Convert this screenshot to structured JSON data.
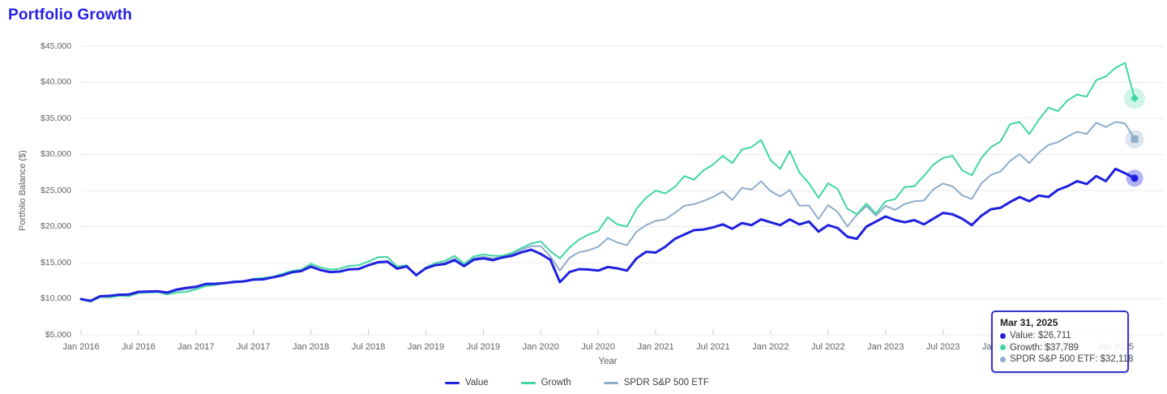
{
  "title": "Portfolio Growth",
  "colors": {
    "title": "#2420e4",
    "value_line": "#2020df",
    "growth_line": "#41d6a3",
    "spdr_line": "#8fadcb",
    "gridline": "#e9e9e9",
    "axis_text": "#616161",
    "tooltip_border": "#3636cd"
  },
  "chart_data": {
    "type": "line",
    "title": "Portfolio Growth",
    "xlabel": "Year",
    "ylabel": "Portfolio Balance ($)",
    "interval": "monthly",
    "x_start": "Jan 2016",
    "x_end": "Mar 2025",
    "x_tick_labels": [
      "Jan 2016",
      "Jul 2016",
      "Jan 2017",
      "Jul 2017",
      "Jan 2018",
      "Jul 2018",
      "Jan 2019",
      "Jul 2019",
      "Jan 2020",
      "Jul 2020",
      "Jan 2021",
      "Jul 2021",
      "Jan 2022",
      "Jul 2022",
      "Jan 2023",
      "Jul 2023",
      "Jan 2024",
      "Jul 2024",
      "Jan 2025"
    ],
    "x_tick_step_months": 6,
    "y_ticks": [
      5000,
      10000,
      15000,
      20000,
      25000,
      30000,
      35000,
      40000,
      45000
    ],
    "y_tick_labels": [
      "$5,000",
      "$10,000",
      "$15,000",
      "$20,000",
      "$25,000",
      "$30,000",
      "$35,000",
      "$40,000",
      "$45,000"
    ],
    "ylim": [
      5000,
      45000
    ],
    "grid": "horizontal",
    "legend_position": "bottom",
    "series": [
      {
        "name": "Value",
        "color": "#2020df",
        "end_marker": "circle",
        "final_value": 26711,
        "values": [
          9950,
          9700,
          10350,
          10400,
          10560,
          10600,
          10960,
          11000,
          11050,
          10850,
          11280,
          11500,
          11650,
          12050,
          12080,
          12180,
          12320,
          12420,
          12650,
          12680,
          12950,
          13240,
          13660,
          13830,
          14450,
          13980,
          13700,
          13760,
          14080,
          14130,
          14640,
          15050,
          15120,
          14170,
          14480,
          13280,
          14230,
          14650,
          14820,
          15350,
          14520,
          15400,
          15600,
          15350,
          15720,
          15960,
          16440,
          16800,
          16200,
          15400,
          12300,
          13700,
          14100,
          14050,
          13900,
          14400,
          14200,
          13900,
          15600,
          16500,
          16400,
          17200,
          18300,
          18900,
          19500,
          19600,
          19900,
          20300,
          19700,
          20500,
          20200,
          21000,
          20600,
          20200,
          21000,
          20300,
          20700,
          19300,
          20200,
          19800,
          18600,
          18300,
          20000,
          20700,
          21400,
          20900,
          20600,
          20900,
          20300,
          21100,
          21900,
          21700,
          21100,
          20200,
          21500,
          22400,
          22600,
          23400,
          24100,
          23500,
          24300,
          24100,
          25100,
          25600,
          26300,
          25900,
          27000,
          26300,
          28000,
          27400,
          26711
        ]
      },
      {
        "name": "Growth",
        "color": "#41d6a3",
        "end_marker": "diamond",
        "final_value": 37789,
        "values": [
          9900,
          9600,
          10250,
          10200,
          10400,
          10350,
          10800,
          10850,
          10900,
          10600,
          10850,
          10950,
          11300,
          11750,
          11900,
          12150,
          12450,
          12400,
          12750,
          12900,
          13050,
          13450,
          13850,
          14050,
          14850,
          14350,
          14050,
          14150,
          14550,
          14650,
          15150,
          15750,
          15800,
          14450,
          14650,
          13150,
          14350,
          14950,
          15250,
          15950,
          14850,
          15850,
          16150,
          15950,
          15950,
          16350,
          17050,
          17650,
          17950,
          16600,
          15600,
          17100,
          18200,
          18900,
          19400,
          21300,
          20300,
          20000,
          22500,
          24000,
          25000,
          24600,
          25500,
          27000,
          26500,
          27800,
          28600,
          29800,
          28800,
          30700,
          31000,
          32000,
          29200,
          28000,
          30500,
          27500,
          26000,
          24000,
          26000,
          25200,
          22500,
          21700,
          23200,
          21800,
          23500,
          23800,
          25500,
          25600,
          27000,
          28600,
          29500,
          29800,
          27800,
          27100,
          29500,
          31000,
          31800,
          34200,
          34500,
          32800,
          34800,
          36500,
          36000,
          37500,
          38300,
          38000,
          40300,
          40800,
          42000,
          42700,
          37789
        ]
      },
      {
        "name": "SPDR S&P 500 ETF",
        "color": "#8fadcb",
        "end_marker": "square",
        "final_value": 32118,
        "values": [
          9920,
          9650,
          10300,
          10350,
          10500,
          10530,
          10900,
          10920,
          10920,
          10730,
          11130,
          11350,
          11550,
          12000,
          12010,
          12130,
          12300,
          12380,
          12630,
          12670,
          12930,
          13230,
          13640,
          13790,
          14570,
          14030,
          13670,
          13720,
          14050,
          14140,
          14670,
          15140,
          15220,
          14180,
          14470,
          13160,
          14220,
          14680,
          14960,
          15570,
          14580,
          15600,
          15830,
          15570,
          15870,
          16210,
          16800,
          17300,
          17290,
          15870,
          13900,
          15690,
          16440,
          16730,
          17200,
          18400,
          17800,
          17400,
          19300,
          20200,
          20800,
          21000,
          21900,
          22900,
          23100,
          23560,
          24110,
          24850,
          23700,
          25360,
          25150,
          26280,
          24910,
          24170,
          25070,
          22890,
          22930,
          21040,
          22980,
          22040,
          20010,
          21630,
          22840,
          21530,
          22880,
          22320,
          23140,
          23510,
          23610,
          25170,
          25980,
          25560,
          24340,
          23820,
          25990,
          27170,
          27620,
          29100,
          30040,
          28810,
          30240,
          31320,
          31710,
          32480,
          33150,
          32840,
          34400,
          33800,
          34500,
          34300,
          32118
        ]
      }
    ]
  },
  "tooltip": {
    "date": "Mar 31, 2025",
    "rows": [
      {
        "series": "Value",
        "text": "Value: $26,711",
        "color": "#2c20df"
      },
      {
        "series": "Growth",
        "text": "Growth: $37,789",
        "color": "#41d6a3"
      },
      {
        "series": "SPDR S&P 500 ETF",
        "text": "SPDR S&P 500 ETF: $32,118",
        "color": "#8fadcb"
      }
    ]
  },
  "legend": {
    "items": [
      "Value",
      "Growth",
      "SPDR S&P 500 ETF"
    ]
  }
}
